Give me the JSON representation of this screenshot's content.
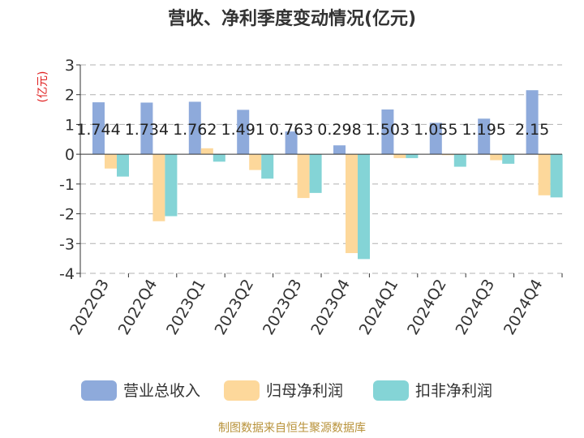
{
  "chart_data": {
    "type": "bar",
    "title": "营收、净利季度变动情况(亿元)",
    "ylabel": "(亿元)",
    "ylim": [
      -4,
      3
    ],
    "yticks": [
      3,
      2,
      1,
      0,
      -1,
      -2,
      -3,
      -4
    ],
    "grid": true,
    "legend_position": "bottom",
    "categories": [
      "2022Q3",
      "2022Q4",
      "2023Q1",
      "2023Q2",
      "2023Q3",
      "2023Q4",
      "2024Q1",
      "2024Q2",
      "2024Q3",
      "2024Q4"
    ],
    "series": [
      {
        "name": "营业总收入",
        "color": "#8eaadb",
        "values": [
          1.744,
          1.734,
          1.762,
          1.491,
          0.763,
          0.298,
          1.503,
          1.055,
          1.195,
          2.15
        ],
        "labels": [
          "1.744",
          "1.734",
          "1.762",
          "1.491",
          "0.763",
          "0.298",
          "1.503",
          "1.055",
          "1.195",
          "2.15"
        ]
      },
      {
        "name": "归母净利润",
        "color": "#fdd89b",
        "values": [
          -0.48,
          -2.25,
          0.2,
          -0.53,
          -1.47,
          -3.32,
          -0.13,
          -0.03,
          -0.2,
          -1.38
        ]
      },
      {
        "name": "扣非净利润",
        "color": "#84d4d6",
        "values": [
          -0.75,
          -2.08,
          -0.25,
          -0.82,
          -1.3,
          -3.52,
          -0.13,
          -0.42,
          -0.32,
          -1.45
        ]
      }
    ],
    "source": "制图数据来自恒生聚源数据库"
  }
}
